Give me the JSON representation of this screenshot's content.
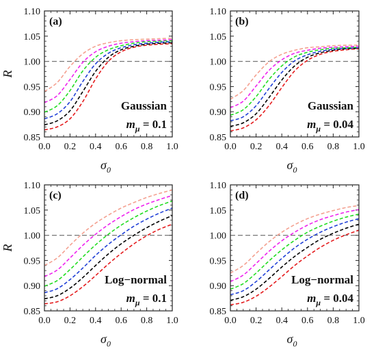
{
  "chart_data": [
    {
      "type": "line",
      "panel_label": "(a)",
      "distribution": "Gaussian",
      "m_label_sym": "m",
      "m_label_sub": "μ",
      "m_label_val": " = 0.1",
      "xlabel_sym": "σ",
      "xlabel_sub": "0",
      "ylabel": "R",
      "xlim": [
        0.0,
        1.0
      ],
      "ylim": [
        0.85,
        1.1
      ],
      "xticks": [
        "0.0",
        "0.2",
        "0.4",
        "0.6",
        "0.8",
        "1.0"
      ],
      "yticks": [
        "0.85",
        "0.90",
        "0.95",
        "1.00",
        "1.05",
        "1.10"
      ],
      "reference_line": 1.0,
      "x": [
        0.0,
        0.1,
        0.2,
        0.3,
        0.4,
        0.5,
        0.6,
        0.7,
        0.8,
        0.9,
        1.0
      ],
      "series": [
        {
          "color": "#e41a1c",
          "values": [
            0.864,
            0.87,
            0.886,
            0.92,
            0.965,
            1.0,
            1.019,
            1.028,
            1.032,
            1.034,
            1.035
          ]
        },
        {
          "color": "#000000",
          "values": [
            0.874,
            0.882,
            0.902,
            0.94,
            0.98,
            1.008,
            1.023,
            1.03,
            1.034,
            1.036,
            1.037
          ]
        },
        {
          "color": "#1f3fd6",
          "values": [
            0.886,
            0.896,
            0.92,
            0.96,
            0.995,
            1.016,
            1.027,
            1.033,
            1.036,
            1.038,
            1.039
          ]
        },
        {
          "color": "#22dd22",
          "values": [
            0.899,
            0.912,
            0.942,
            0.981,
            1.008,
            1.023,
            1.031,
            1.036,
            1.039,
            1.04,
            1.041
          ]
        },
        {
          "color": "#ee22ee",
          "values": [
            0.918,
            0.932,
            0.964,
            0.998,
            1.019,
            1.03,
            1.036,
            1.039,
            1.041,
            1.042,
            1.043
          ]
        },
        {
          "color": "#f4a090",
          "values": [
            0.94,
            0.958,
            0.99,
            1.015,
            1.03,
            1.037,
            1.041,
            1.043,
            1.044,
            1.045,
            1.046
          ]
        }
      ]
    },
    {
      "type": "line",
      "panel_label": "(b)",
      "distribution": "Gaussian",
      "m_label_sym": "m",
      "m_label_sub": "μ",
      "m_label_val": " = 0.04",
      "xlabel_sym": "σ",
      "xlabel_sub": "0",
      "ylabel": "",
      "xlim": [
        0.0,
        1.0
      ],
      "ylim": [
        0.85,
        1.1
      ],
      "xticks": [
        "0.0",
        "0.2",
        "0.4",
        "0.6",
        "0.8",
        "1.0"
      ],
      "yticks": [
        "0.85",
        "0.90",
        "0.95",
        "1.00",
        "1.05",
        "1.10"
      ],
      "reference_line": 1.0,
      "x": [
        0.0,
        0.1,
        0.2,
        0.3,
        0.4,
        0.5,
        0.6,
        0.7,
        0.8,
        0.9,
        1.0
      ],
      "series": [
        {
          "color": "#e41a1c",
          "values": [
            0.862,
            0.868,
            0.884,
            0.912,
            0.948,
            0.981,
            1.002,
            1.014,
            1.02,
            1.023,
            1.025
          ]
        },
        {
          "color": "#000000",
          "values": [
            0.871,
            0.878,
            0.896,
            0.928,
            0.963,
            0.991,
            1.008,
            1.017,
            1.022,
            1.025,
            1.026
          ]
        },
        {
          "color": "#1f3fd6",
          "values": [
            0.882,
            0.89,
            0.912,
            0.946,
            0.978,
            1.001,
            1.013,
            1.02,
            1.024,
            1.026,
            1.027
          ]
        },
        {
          "color": "#22dd22",
          "values": [
            0.893,
            0.904,
            0.93,
            0.964,
            0.991,
            1.009,
            1.018,
            1.023,
            1.026,
            1.027,
            1.028
          ]
        },
        {
          "color": "#ee22ee",
          "values": [
            0.908,
            0.921,
            0.951,
            0.982,
            1.003,
            1.016,
            1.022,
            1.026,
            1.028,
            1.029,
            1.03
          ]
        },
        {
          "color": "#f4a090",
          "values": [
            0.925,
            0.942,
            0.973,
            0.999,
            1.014,
            1.022,
            1.027,
            1.029,
            1.031,
            1.032,
            1.032
          ]
        }
      ]
    },
    {
      "type": "line",
      "panel_label": "(c)",
      "distribution": "Log−normal",
      "m_label_sym": "m",
      "m_label_sub": "μ",
      "m_label_val": " = 0.1",
      "xlabel_sym": "σ",
      "xlabel_sub": "0",
      "ylabel": "R",
      "xlim": [
        0.0,
        1.0
      ],
      "ylim": [
        0.85,
        1.1
      ],
      "xticks": [
        "0.0",
        "0.2",
        "0.4",
        "0.6",
        "0.8",
        "1.0"
      ],
      "yticks": [
        "0.85",
        "0.90",
        "0.95",
        "1.00",
        "1.05",
        "1.10"
      ],
      "reference_line": 1.0,
      "x": [
        0.0,
        0.1,
        0.2,
        0.3,
        0.4,
        0.5,
        0.6,
        0.7,
        0.8,
        0.9,
        1.0
      ],
      "series": [
        {
          "color": "#e41a1c",
          "values": [
            0.864,
            0.868,
            0.88,
            0.898,
            0.92,
            0.943,
            0.964,
            0.983,
            0.999,
            1.012,
            1.022
          ]
        },
        {
          "color": "#000000",
          "values": [
            0.874,
            0.88,
            0.895,
            0.916,
            0.94,
            0.963,
            0.983,
            1.0,
            1.015,
            1.028,
            1.039
          ]
        },
        {
          "color": "#1f3fd6",
          "values": [
            0.886,
            0.894,
            0.912,
            0.935,
            0.96,
            0.982,
            1.001,
            1.018,
            1.032,
            1.044,
            1.054
          ]
        },
        {
          "color": "#22dd22",
          "values": [
            0.899,
            0.91,
            0.932,
            0.957,
            0.981,
            1.002,
            1.02,
            1.035,
            1.048,
            1.059,
            1.068
          ]
        },
        {
          "color": "#ee22ee",
          "values": [
            0.918,
            0.931,
            0.955,
            0.98,
            1.002,
            1.021,
            1.037,
            1.051,
            1.062,
            1.071,
            1.079
          ]
        },
        {
          "color": "#f4a090",
          "values": [
            0.94,
            0.955,
            0.98,
            1.004,
            1.024,
            1.04,
            1.054,
            1.065,
            1.075,
            1.083,
            1.09
          ]
        }
      ]
    },
    {
      "type": "line",
      "panel_label": "(d)",
      "distribution": "Log−normal",
      "m_label_sym": "m",
      "m_label_sub": "μ",
      "m_label_val": " = 0.04",
      "xlabel_sym": "σ",
      "xlabel_sub": "0",
      "ylabel": "",
      "xlim": [
        0.0,
        1.0
      ],
      "ylim": [
        0.85,
        1.1
      ],
      "xticks": [
        "0.0",
        "0.2",
        "0.4",
        "0.6",
        "0.8",
        "1.0"
      ],
      "yticks": [
        "0.85",
        "0.90",
        "0.95",
        "1.00",
        "1.05",
        "1.10"
      ],
      "reference_line": 1.0,
      "x": [
        0.0,
        0.1,
        0.2,
        0.3,
        0.4,
        0.5,
        0.6,
        0.7,
        0.8,
        0.9,
        1.0
      ],
      "series": [
        {
          "color": "#e41a1c",
          "values": [
            0.862,
            0.867,
            0.879,
            0.897,
            0.918,
            0.94,
            0.959,
            0.976,
            0.99,
            1.001,
            1.01
          ]
        },
        {
          "color": "#000000",
          "values": [
            0.871,
            0.878,
            0.893,
            0.914,
            0.937,
            0.958,
            0.976,
            0.992,
            1.004,
            1.014,
            1.022
          ]
        },
        {
          "color": "#1f3fd6",
          "values": [
            0.882,
            0.89,
            0.908,
            0.931,
            0.954,
            0.975,
            0.992,
            1.006,
            1.017,
            1.026,
            1.033
          ]
        },
        {
          "color": "#22dd22",
          "values": [
            0.893,
            0.904,
            0.925,
            0.949,
            0.971,
            0.99,
            1.006,
            1.018,
            1.028,
            1.036,
            1.042
          ]
        },
        {
          "color": "#ee22ee",
          "values": [
            0.908,
            0.921,
            0.944,
            0.968,
            0.989,
            1.006,
            1.02,
            1.031,
            1.039,
            1.046,
            1.051
          ]
        },
        {
          "color": "#f4a090",
          "values": [
            0.925,
            0.94,
            0.964,
            0.987,
            1.006,
            1.021,
            1.033,
            1.042,
            1.049,
            1.055,
            1.059
          ]
        }
      ]
    }
  ]
}
